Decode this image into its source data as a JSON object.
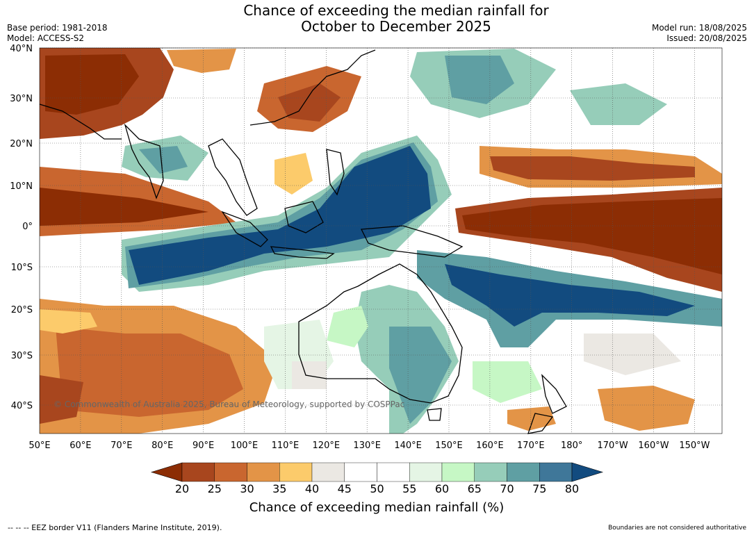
{
  "header": {
    "title_line1": "Chance of exceeding the median rainfall for",
    "title_line2": "October to December 2025",
    "base_period": "Base period: 1981-2018",
    "model": "Model: ACCESS-S2",
    "model_run": "Model run: 18/08/2025",
    "issued": "Issued: 20/08/2025"
  },
  "map": {
    "lat_ticks": [
      "40°N",
      "30°N",
      "20°N",
      "10°N",
      "0°",
      "10°S",
      "20°S",
      "30°S",
      "40°S"
    ],
    "lon_ticks": [
      "50°E",
      "60°E",
      "70°E",
      "80°E",
      "90°E",
      "100°E",
      "110°E",
      "120°E",
      "130°E",
      "140°E",
      "150°E",
      "160°E",
      "170°E",
      "180°",
      "170°W",
      "160°W",
      "150°W"
    ],
    "copyright": "© Commonwealth of Australia 2025, Bureau of Meteorology, supported by COSPPac"
  },
  "colorbar": {
    "labels": [
      "20",
      "25",
      "30",
      "35",
      "40",
      "45",
      "50",
      "55",
      "60",
      "65",
      "70",
      "75",
      "80"
    ],
    "colors": [
      "#8c2d04",
      "#a8461e",
      "#c9662f",
      "#e39447",
      "#fccb6b",
      "#ebe8e3",
      "#ffffff",
      "#ffffff",
      "#e5f5e5",
      "#c6f7c5",
      "#96cdb9",
      "#5f9fa3",
      "#3f7799",
      "#124b7f"
    ],
    "title": "Chance of exceeding median rainfall (%)"
  },
  "footer": {
    "eez_note": "--  --  -- EEZ border V11 (Flanders Marine Institute, 2019).",
    "boundaries_note": "Boundaries are not considered authoritative"
  }
}
